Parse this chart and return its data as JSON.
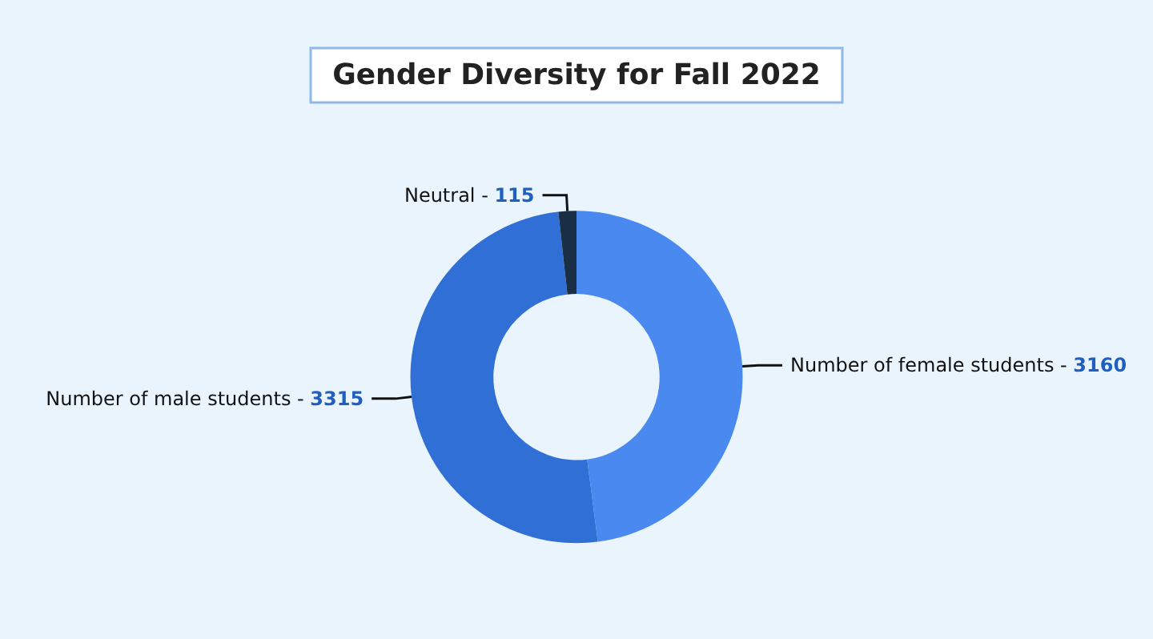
{
  "chart_data": {
    "type": "donut",
    "title": "Gender Diversity for Fall 2022",
    "categories": [
      "Number of female students -",
      "Number of male students -",
      "Neutral -"
    ],
    "values": [
      3160,
      3315,
      115
    ],
    "colors": [
      "#4a8af0",
      "#2f6fd6",
      "#1a2e45"
    ],
    "data_labels": true,
    "legend": false
  }
}
